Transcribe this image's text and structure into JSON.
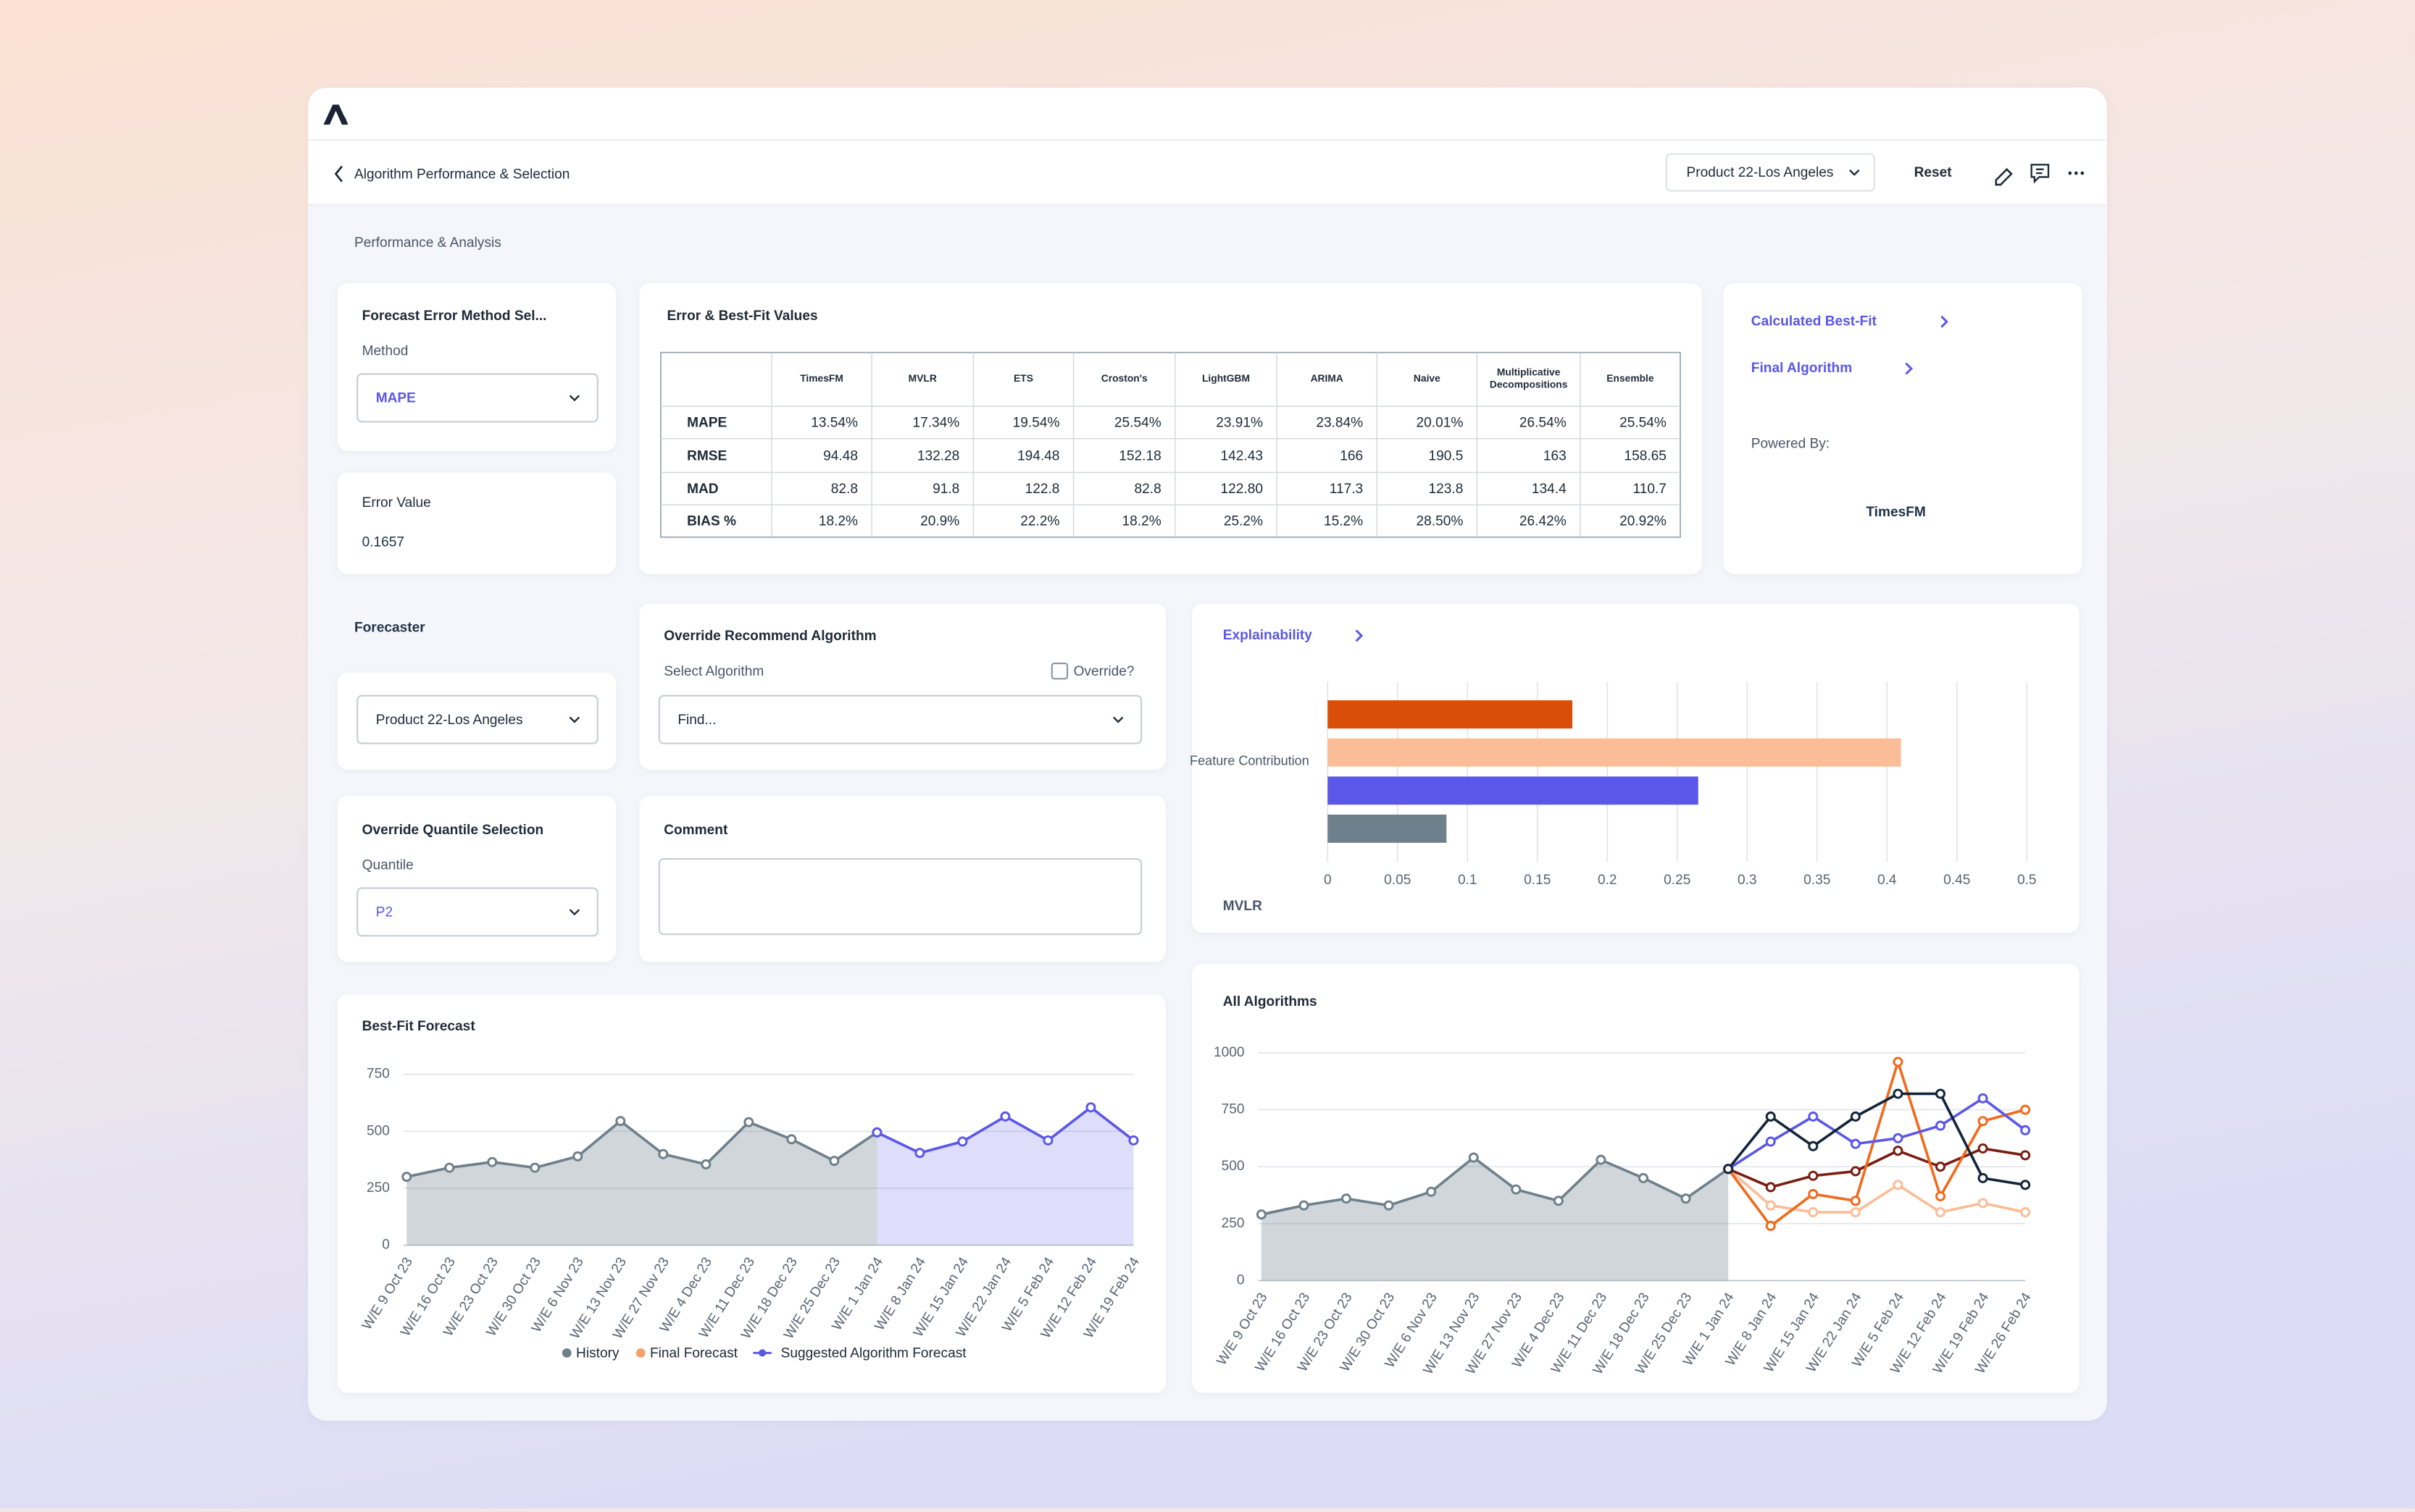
{
  "header": {
    "title": "Algorithm Performance & Selection",
    "product": "Product 22-Los Angeles",
    "reset": "Reset"
  },
  "section_title": "Performance & Analysis",
  "error_method": {
    "title": "Forecast Error Method Sel...",
    "label": "Method",
    "value": "MAPE"
  },
  "error_value": {
    "title": "Error Value",
    "value": "0.1657"
  },
  "table": {
    "title": "Error & Best-Fit Values",
    "columns": [
      "TimesFM",
      "MVLR",
      "ETS",
      "Croston's",
      "LightGBM",
      "ARIMA",
      "Naive",
      "Multiplicative Decompositions",
      "Ensemble"
    ],
    "rows": [
      [
        "MAPE",
        "13.54%",
        "17.34%",
        "19.54%",
        "25.54%",
        "23.91%",
        "23.84%",
        "20.01%",
        "26.54%",
        "25.54%"
      ],
      [
        "RMSE",
        "94.48",
        "132.28",
        "194.48",
        "152.18",
        "142.43",
        "166",
        "190.5",
        "163",
        "158.65"
      ],
      [
        "MAD",
        "82.8",
        "91.8",
        "122.8",
        "82.8",
        "122.80",
        "117.3",
        "123.8",
        "134.4",
        "110.7"
      ],
      [
        "BIAS %",
        "18.2%",
        "20.9%",
        "22.2%",
        "18.2%",
        "25.2%",
        "15.2%",
        "28.50%",
        "26.42%",
        "20.92%"
      ]
    ]
  },
  "best_fit_links": {
    "calculated": "Calculated Best-Fit",
    "final": "Final Algorithm",
    "powered_by": "Powered By:",
    "model": "TimesFM"
  },
  "forecaster": {
    "title": "Forecaster",
    "product": "Product 22-Los Angeles"
  },
  "override_algorithm": {
    "title": "Override Recommend Algorithm",
    "label": "Select Algorithm",
    "checkbox": "Override?",
    "placeholder": "Find..."
  },
  "quantile": {
    "title": "Override Quantile Selection",
    "label": "Quantile",
    "value": "P2"
  },
  "comment": {
    "title": "Comment"
  },
  "chart_data": [
    {
      "type": "hbar",
      "title": "Explainability",
      "categories": [
        "Feature Contribution"
      ],
      "series": [
        {
          "color": "#d94f0a",
          "values": [
            0.175
          ]
        },
        {
          "color": "#fbbd97",
          "values": [
            0.41
          ]
        },
        {
          "color": "#5b57e8",
          "values": [
            0.265
          ]
        },
        {
          "color": "#6e808c",
          "values": [
            0.085
          ]
        }
      ],
      "xlim": [
        0,
        0.5
      ],
      "xticks": [
        0,
        0.05,
        0.1,
        0.15,
        0.2,
        0.25,
        0.3,
        0.35,
        0.4,
        0.45,
        0.5
      ],
      "grid": true,
      "caption": "MVLR"
    },
    {
      "type": "line",
      "title": "Best-Fit Forecast",
      "categories": [
        "W/E 9 Oct 23",
        "W/E 16 Oct 23",
        "W/E 23 Oct 23",
        "W/E 30 Oct 23",
        "W/E 6 Nov 23",
        "W/E 13 Nov 23",
        "W/E 27 Nov 23",
        "W/E 4 Dec 23",
        "W/E 11 Dec 23",
        "W/E 18 Dec 23",
        "W/E 25 Dec 23",
        "W/E 1 Jan 24",
        "W/E 8 Jan 24",
        "W/E 15 Jan 24",
        "W/E 22 Jan 24",
        "W/E 5 Feb 24",
        "W/E 12 Feb 24",
        "W/E 19 Feb 24"
      ],
      "series": [
        {
          "name": "History",
          "color": "#6e808c",
          "area": true,
          "values": [
            300,
            340,
            365,
            340,
            390,
            545,
            400,
            355,
            540,
            465,
            370,
            495,
            null,
            null,
            null,
            null,
            null,
            null
          ]
        },
        {
          "name": "Final Forecast",
          "color": "#f4a06a",
          "values": [
            null,
            null,
            null,
            null,
            null,
            null,
            null,
            null,
            null,
            null,
            null,
            null,
            null,
            null,
            null,
            null,
            null,
            null
          ]
        },
        {
          "name": "Suggested Algorithm Forecast",
          "color": "#5b57e8",
          "area": true,
          "values": [
            null,
            null,
            null,
            null,
            null,
            null,
            null,
            null,
            null,
            null,
            null,
            495,
            405,
            455,
            565,
            460,
            605,
            460
          ]
        }
      ],
      "ylim": [
        0,
        750
      ],
      "yticks": [
        0,
        250,
        500,
        750
      ],
      "grid": true,
      "legend": "bottom"
    },
    {
      "type": "line",
      "title": "All Algorithms",
      "categories": [
        "W/E 9 Oct 23",
        "W/E 16 Oct 23",
        "W/E 23 Oct 23",
        "W/E 30 Oct 23",
        "W/E 6 Nov 23",
        "W/E 13 Nov 23",
        "W/E 27 Nov 23",
        "W/E 4 Dec 23",
        "W/E 11 Dec 23",
        "W/E 18 Dec 23",
        "W/E 25 Dec 23",
        "W/E 1 Jan 24",
        "W/E 8 Jan 24",
        "W/E 15 Jan 24",
        "W/E 22 Jan 24",
        "W/E 5 Feb 24",
        "W/E 12 Feb 24",
        "W/E 19 Feb 24",
        "W/E 26 Feb 24"
      ],
      "series": [
        {
          "color": "#6e808c",
          "area": true,
          "values": [
            290,
            330,
            360,
            330,
            390,
            540,
            400,
            350,
            530,
            450,
            360,
            490,
            null,
            null,
            null,
            null,
            null,
            null,
            null
          ]
        },
        {
          "color": "#fbbd97",
          "values": [
            null,
            null,
            null,
            null,
            null,
            null,
            null,
            null,
            null,
            null,
            null,
            490,
            330,
            300,
            300,
            420,
            300,
            340,
            300
          ]
        },
        {
          "color": "#7a1d12",
          "values": [
            null,
            null,
            null,
            null,
            null,
            null,
            null,
            null,
            null,
            null,
            null,
            490,
            410,
            460,
            480,
            570,
            500,
            580,
            550
          ]
        },
        {
          "color": "#f26a1b",
          "values": [
            null,
            null,
            null,
            null,
            null,
            null,
            null,
            null,
            null,
            null,
            null,
            490,
            240,
            380,
            350,
            960,
            370,
            700,
            750
          ]
        },
        {
          "color": "#5b57e8",
          "values": [
            null,
            null,
            null,
            null,
            null,
            null,
            null,
            null,
            null,
            null,
            null,
            490,
            610,
            720,
            600,
            625,
            680,
            800,
            660
          ]
        },
        {
          "color": "#13243a",
          "values": [
            null,
            null,
            null,
            null,
            null,
            null,
            null,
            null,
            null,
            null,
            null,
            490,
            720,
            590,
            720,
            820,
            820,
            450,
            420
          ]
        }
      ],
      "ylim": [
        0,
        1000
      ],
      "yticks": [
        0,
        250,
        500,
        750,
        1000
      ],
      "grid": true
    }
  ]
}
